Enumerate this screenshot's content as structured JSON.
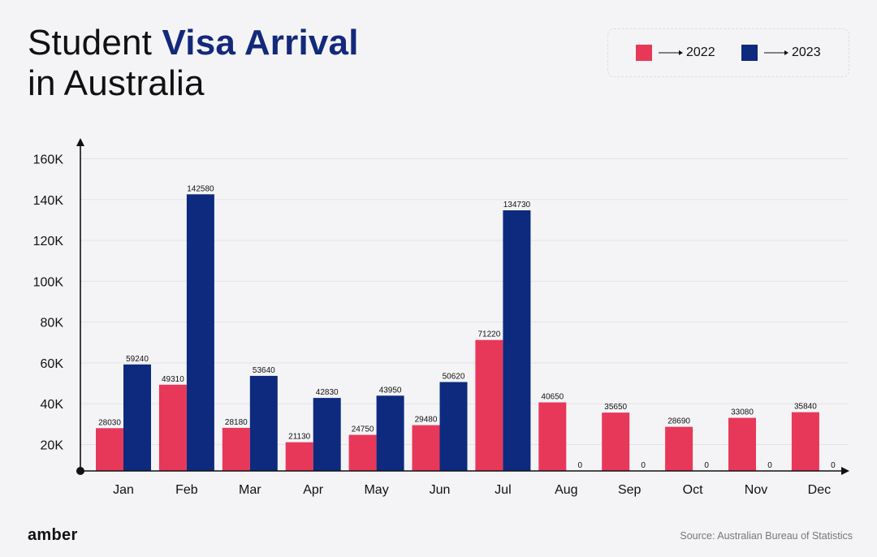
{
  "title": {
    "part1": "Student ",
    "emphasis": "Visa Arrival",
    "line2": "in Australia"
  },
  "legend": [
    {
      "label": "2022",
      "color": "#e8385a"
    },
    {
      "label": "2023",
      "color": "#0d2a7e"
    }
  ],
  "chart_data": {
    "type": "bar",
    "title": "Student Visa Arrival in Australia",
    "xlabel": "",
    "ylabel": "",
    "categories": [
      "Jan",
      "Feb",
      "Mar",
      "Apr",
      "May",
      "Jun",
      "Jul",
      "Aug",
      "Sep",
      "Oct",
      "Nov",
      "Dec"
    ],
    "series": [
      {
        "name": "2022",
        "color": "#e8385a",
        "values": [
          28030,
          49310,
          28180,
          21130,
          24750,
          29480,
          71220,
          40650,
          35650,
          28690,
          33080,
          35840
        ]
      },
      {
        "name": "2023",
        "color": "#0d2a7e",
        "values": [
          59240,
          142580,
          53640,
          42830,
          43950,
          50620,
          134730,
          0,
          0,
          0,
          0,
          0
        ]
      }
    ],
    "yticks": [
      20000,
      40000,
      60000,
      80000,
      100000,
      120000,
      140000,
      160000
    ],
    "ytick_labels": [
      "20K",
      "40K",
      "60K",
      "80K",
      "100K",
      "120K",
      "140K",
      "160K"
    ],
    "ylim": [
      7000,
      160000
    ],
    "grid": true,
    "legend_position": "top-right"
  },
  "footer": {
    "brand": "amber",
    "source": "Source: Australian Bureau of Statistics"
  }
}
